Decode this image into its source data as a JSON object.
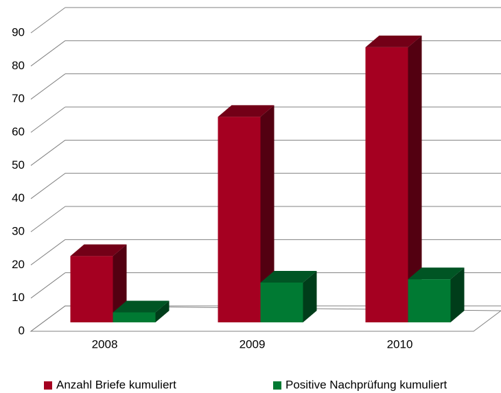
{
  "chart_data": {
    "type": "bar3d",
    "categories": [
      "2008",
      "2009",
      "2010"
    ],
    "series": [
      {
        "name": "Anzahl Briefe kumuliert",
        "color": "#a50021",
        "values": [
          20,
          62,
          83
        ]
      },
      {
        "name": "Positive Nachprüfung kumuliert",
        "color": "#007a33",
        "values": [
          3,
          12,
          13
        ]
      }
    ],
    "ylim": [
      0,
      90
    ],
    "yticks": [
      0,
      10,
      20,
      30,
      40,
      50,
      60,
      70,
      80,
      90
    ],
    "grid": true,
    "legend": "bottom"
  }
}
